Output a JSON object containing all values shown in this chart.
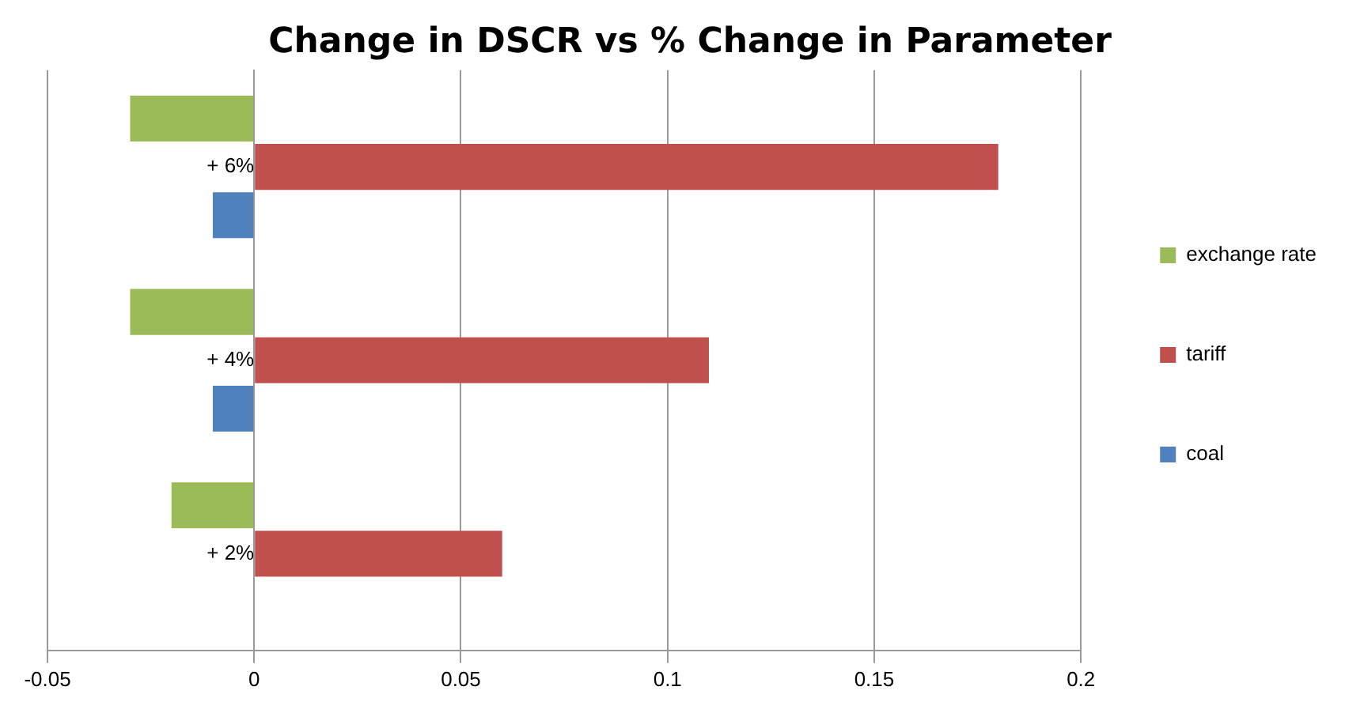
{
  "chart_data": {
    "type": "bar",
    "orientation": "horizontal",
    "title": "Change in DSCR vs % Change in Parameter",
    "categories": [
      "+ 6%",
      "+ 4%",
      "+ 2%"
    ],
    "series": [
      {
        "name": "exchange rate",
        "color": "#9bbb59",
        "values": [
          -0.03,
          -0.03,
          -0.02
        ]
      },
      {
        "name": "tariff",
        "color": "#c0504d",
        "values": [
          0.18,
          0.11,
          0.06
        ]
      },
      {
        "name": "coal",
        "color": "#4f81bd",
        "values": [
          -0.01,
          -0.01,
          null
        ]
      }
    ],
    "xlim": [
      -0.05,
      0.2
    ],
    "xticks": [
      -0.05,
      0,
      0.05,
      0.1,
      0.15,
      0.2
    ],
    "grid": "x",
    "legend": "right"
  }
}
